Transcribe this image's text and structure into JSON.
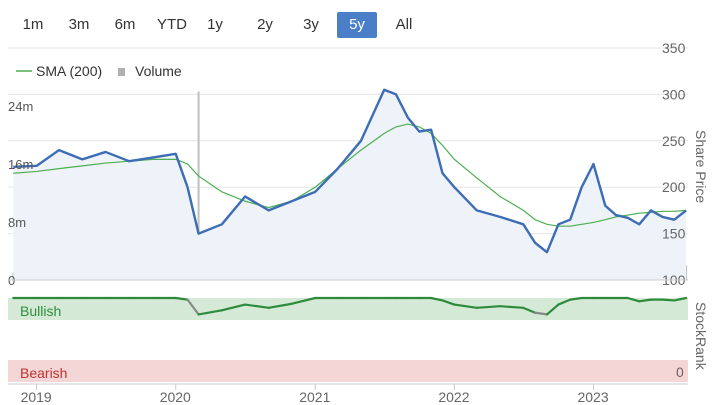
{
  "ranges": [
    {
      "label": "1m",
      "active": false
    },
    {
      "label": "3m",
      "active": false
    },
    {
      "label": "6m",
      "active": false
    },
    {
      "label": "YTD",
      "active": false
    },
    {
      "label": "1y",
      "active": false
    },
    {
      "label": "2y",
      "active": false
    },
    {
      "label": "3y",
      "active": false
    },
    {
      "label": "5y",
      "active": true
    },
    {
      "label": "All",
      "active": false
    }
  ],
  "legend": {
    "sma_label": "SMA (200)",
    "volume_label": "Volume"
  },
  "axis": {
    "price_title": "Share Price",
    "stockrank_title": "StockRank",
    "price_ticks": [
      "350",
      "300",
      "250",
      "200",
      "150",
      "100"
    ],
    "volume_ticks": [
      "24m",
      "16m",
      "8m",
      "0"
    ],
    "stockrank_zero": "0",
    "years": [
      "2019",
      "2020",
      "2021",
      "2022",
      "2023"
    ]
  },
  "zones": {
    "bullish": "Bullish",
    "bearish": "Bearish"
  },
  "colors": {
    "price": "#3d6db5",
    "sma": "#4caf50",
    "volume": "#c0c0c0",
    "bull_zone": "#d4ead6",
    "bear_zone": "#f5d6d6",
    "bull_text": "#2e8b3c",
    "bear_text": "#c03030",
    "active_btn": "#4a7fc8"
  },
  "chart_data": {
    "type": "line",
    "x": [
      "2018-11",
      "2019-01",
      "2019-03",
      "2019-05",
      "2019-07",
      "2019-09",
      "2019-11",
      "2020-01",
      "2020-02",
      "2020-03",
      "2020-05",
      "2020-07",
      "2020-09",
      "2020-11",
      "2021-01",
      "2021-03",
      "2021-05",
      "2021-07",
      "2021-08",
      "2021-09",
      "2021-10",
      "2021-11",
      "2021-12",
      "2022-01",
      "2022-03",
      "2022-05",
      "2022-07",
      "2022-08",
      "2022-09",
      "2022-10",
      "2022-11",
      "2022-12",
      "2023-01",
      "2023-02",
      "2023-03",
      "2023-04",
      "2023-05",
      "2023-06",
      "2023-07",
      "2023-08",
      "2023-09"
    ],
    "series": [
      {
        "name": "Share Price",
        "values": [
          222,
          223,
          240,
          230,
          238,
          228,
          232,
          236,
          200,
          150,
          160,
          190,
          175,
          185,
          195,
          220,
          250,
          305,
          300,
          275,
          260,
          262,
          215,
          200,
          175,
          168,
          160,
          140,
          130,
          160,
          165,
          200,
          225,
          180,
          170,
          167,
          160,
          175,
          168,
          165,
          175
        ]
      },
      {
        "name": "SMA (200)",
        "values": [
          215,
          217,
          220,
          223,
          226,
          228,
          230,
          230,
          225,
          212,
          195,
          185,
          178,
          185,
          200,
          220,
          240,
          258,
          265,
          268,
          265,
          258,
          245,
          230,
          210,
          190,
          175,
          165,
          160,
          158,
          158,
          160,
          162,
          165,
          168,
          170,
          172,
          173,
          174,
          174,
          175
        ]
      }
    ],
    "volume_m": [
      1,
      1,
      1,
      1,
      1,
      1,
      1,
      1,
      12,
      26,
      3,
      2,
      2,
      2,
      1,
      2,
      2,
      2,
      2,
      2,
      2,
      2,
      2,
      2,
      2,
      3,
      2,
      2,
      2,
      3,
      3,
      2,
      2,
      2,
      2,
      2,
      2,
      2,
      2,
      2,
      2
    ],
    "stockrank_series": {
      "name": "StockRank",
      "values": [
        100,
        100,
        100,
        100,
        100,
        100,
        100,
        100,
        98,
        80,
        85,
        92,
        88,
        93,
        100,
        100,
        100,
        100,
        100,
        100,
        100,
        100,
        97,
        92,
        88,
        90,
        88,
        82,
        80,
        92,
        98,
        100,
        100,
        100,
        100,
        100,
        96,
        98,
        98,
        97,
        100
      ]
    },
    "price_ylim": [
      100,
      350
    ],
    "volume_ylim": [
      0,
      32
    ],
    "stockrank_ylim": [
      0,
      100
    ],
    "legend": "top-left"
  }
}
